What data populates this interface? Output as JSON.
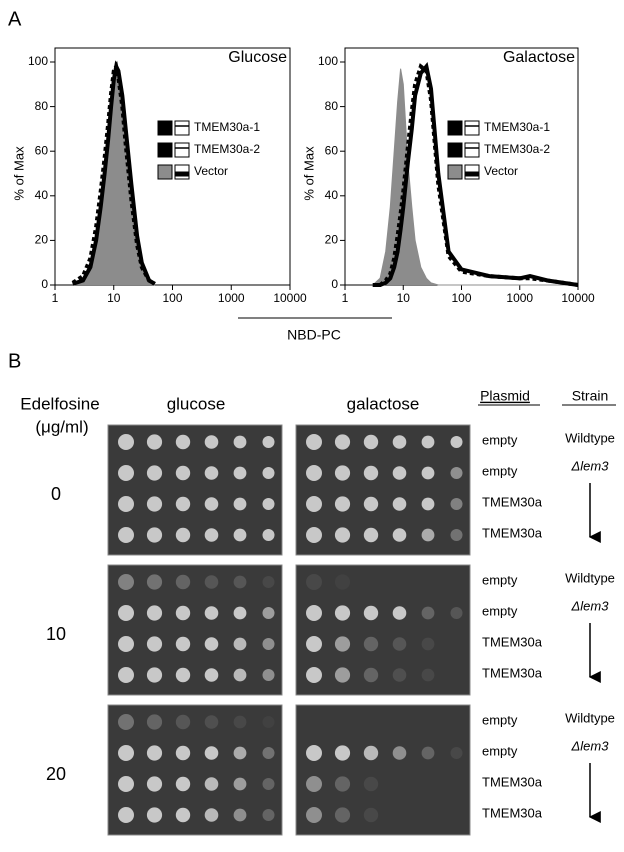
{
  "panel_a": {
    "label": "A",
    "xlabel": "NBD-PC"
  },
  "chart_data": [
    {
      "type": "line",
      "title": "Glucose",
      "ylabel": "% of Max",
      "log_x": true,
      "xlim": [
        1,
        10000
      ],
      "xticks": [
        1,
        10,
        100,
        1000,
        10000
      ],
      "ylim": [
        0,
        100
      ],
      "yticks": [
        0,
        20,
        40,
        60,
        80,
        100
      ],
      "x": [
        2,
        3,
        4,
        5,
        6,
        7,
        8,
        9,
        10,
        11,
        12,
        14,
        16,
        20,
        25,
        30,
        40,
        50
      ],
      "series": [
        {
          "name": "TMEM30a-1",
          "color": "#000000",
          "style": "solid",
          "values": [
            0.5,
            2,
            8,
            20,
            35,
            50,
            65,
            80,
            92,
            98,
            96,
            85,
            70,
            45,
            22,
            10,
            2,
            0.5
          ]
        },
        {
          "name": "TMEM30a-2",
          "color": "#000000",
          "style": "dashed",
          "values": [
            1,
            4,
            12,
            26,
            42,
            57,
            72,
            86,
            96,
            98,
            93,
            80,
            63,
            38,
            18,
            8,
            2,
            0.5
          ]
        },
        {
          "name": "Vector",
          "color": "#8c8c8c",
          "style": "area",
          "values": [
            0.5,
            3,
            10,
            22,
            38,
            53,
            68,
            82,
            93,
            97,
            94,
            82,
            65,
            40,
            18,
            7,
            1,
            0
          ]
        }
      ]
    },
    {
      "type": "line",
      "title": "Galactose",
      "ylabel": "% of Max",
      "log_x": true,
      "xlim": [
        1,
        10000
      ],
      "xticks": [
        1,
        10,
        100,
        1000,
        10000
      ],
      "ylim": [
        0,
        100
      ],
      "yticks": [
        0,
        20,
        40,
        60,
        80,
        100
      ],
      "x": [
        3,
        4,
        5,
        6,
        7,
        8,
        9,
        10,
        12,
        14,
        16,
        20,
        25,
        30,
        40,
        60,
        100,
        300,
        1000,
        1500,
        3000,
        10000
      ],
      "series": [
        {
          "name": "TMEM30a-1",
          "color": "#000000",
          "style": "solid",
          "values": [
            0,
            0,
            1,
            3,
            8,
            15,
            25,
            35,
            55,
            70,
            85,
            95,
            98,
            88,
            50,
            15,
            7,
            4,
            3,
            4,
            2,
            0
          ]
        },
        {
          "name": "TMEM30a-2",
          "color": "#000000",
          "style": "dashed",
          "values": [
            0,
            0,
            2,
            5,
            12,
            22,
            32,
            42,
            62,
            78,
            90,
            98,
            96,
            83,
            45,
            13,
            6,
            4,
            3,
            3,
            2,
            0
          ]
        },
        {
          "name": "Vector",
          "color": "#8c8c8c",
          "style": "area",
          "values": [
            0,
            3,
            15,
            35,
            60,
            82,
            97,
            90,
            55,
            35,
            20,
            8,
            3,
            1,
            0,
            0,
            0,
            0,
            0,
            0,
            0,
            0
          ]
        }
      ]
    }
  ],
  "panel_b": {
    "label": "B",
    "dose_header": "Edelfosine",
    "dose_unit": "(μg/ml)",
    "media": [
      "glucose",
      "galactose"
    ],
    "plasmid_header": "Plasmid",
    "strain_header": "Strain",
    "groups": [
      {
        "dose": 0,
        "plasmids": [
          "empty",
          "empty",
          "TMEM30a",
          "TMEM30a"
        ],
        "strains": [
          "Wildtype",
          "Δlem3"
        ]
      },
      {
        "dose": 10,
        "plasmids": [
          "empty",
          "empty",
          "TMEM30a",
          "TMEM30a"
        ],
        "strains": [
          "Wildtype",
          "Δlem3"
        ]
      },
      {
        "dose": 20,
        "plasmids": [
          "empty",
          "empty",
          "TMEM30a",
          "TMEM30a"
        ],
        "strains": [
          "Wildtype",
          "Δlem3"
        ]
      }
    ]
  }
}
